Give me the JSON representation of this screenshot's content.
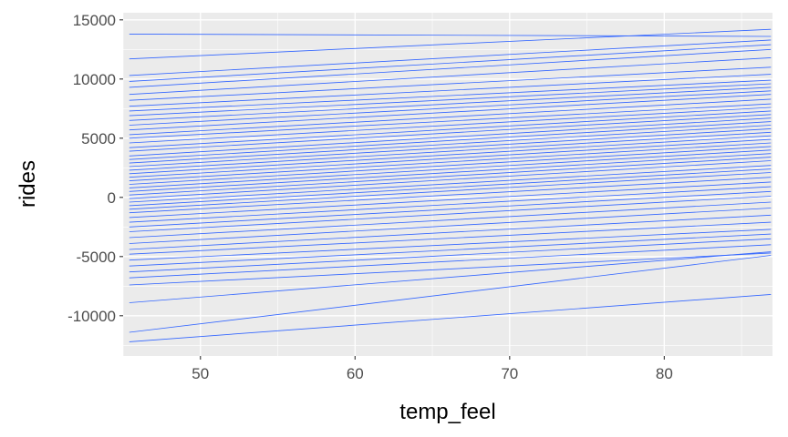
{
  "chart_data": {
    "type": "line",
    "title": "",
    "xlabel": "temp_feel",
    "ylabel": "rides",
    "xlim": [
      45.0,
      87.0
    ],
    "ylim": [
      -13400,
      15600
    ],
    "x_ticks": [
      50,
      60,
      70,
      80
    ],
    "y_ticks": [
      -10000,
      -5000,
      0,
      5000,
      10000,
      15000
    ],
    "x_tick_labels": [
      "50",
      "60",
      "70",
      "80"
    ],
    "y_tick_labels": [
      "-10000",
      "-5000",
      "0",
      "5000",
      "10000",
      "15000"
    ],
    "grid": true,
    "line_color": "#3366FF",
    "panel_background": "#EBEBEB",
    "legend": "none",
    "series": [
      {
        "x": [
          45.4,
          86.9
        ],
        "y": [
          13800,
          13600
        ]
      },
      {
        "x": [
          45.4,
          86.9
        ],
        "y": [
          11700,
          14200
        ]
      },
      {
        "x": [
          45.4,
          86.9
        ],
        "y": [
          10300,
          13300
        ]
      },
      {
        "x": [
          45.4,
          86.9
        ],
        "y": [
          9800,
          12900
        ]
      },
      {
        "x": [
          45.4,
          86.9
        ],
        "y": [
          9300,
          12500
        ]
      },
      {
        "x": [
          45.4,
          86.9
        ],
        "y": [
          8700,
          11800
        ]
      },
      {
        "x": [
          45.4,
          86.9
        ],
        "y": [
          8200,
          11000
        ]
      },
      {
        "x": [
          45.4,
          86.9
        ],
        "y": [
          7700,
          10400
        ]
      },
      {
        "x": [
          45.4,
          86.9
        ],
        "y": [
          7300,
          9900
        ]
      },
      {
        "x": [
          45.4,
          86.9
        ],
        "y": [
          6900,
          9600
        ]
      },
      {
        "x": [
          45.4,
          86.9
        ],
        "y": [
          6500,
          9300
        ]
      },
      {
        "x": [
          45.4,
          86.9
        ],
        "y": [
          6100,
          9000
        ]
      },
      {
        "x": [
          45.4,
          86.9
        ],
        "y": [
          5700,
          8700
        ]
      },
      {
        "x": [
          45.4,
          86.9
        ],
        "y": [
          5300,
          8300
        ]
      },
      {
        "x": [
          45.4,
          86.9
        ],
        "y": [
          5000,
          7900
        ]
      },
      {
        "x": [
          45.4,
          86.9
        ],
        "y": [
          4600,
          7600
        ]
      },
      {
        "x": [
          45.4,
          86.9
        ],
        "y": [
          4200,
          7300
        ]
      },
      {
        "x": [
          45.4,
          86.9
        ],
        "y": [
          3900,
          7000
        ]
      },
      {
        "x": [
          45.4,
          86.9
        ],
        "y": [
          3500,
          6700
        ]
      },
      {
        "x": [
          45.4,
          86.9
        ],
        "y": [
          3200,
          6400
        ]
      },
      {
        "x": [
          45.4,
          86.9
        ],
        "y": [
          2900,
          6100
        ]
      },
      {
        "x": [
          45.4,
          86.9
        ],
        "y": [
          2600,
          5800
        ]
      },
      {
        "x": [
          45.4,
          86.9
        ],
        "y": [
          2300,
          5500
        ]
      },
      {
        "x": [
          45.4,
          86.9
        ],
        "y": [
          2000,
          5200
        ]
      },
      {
        "x": [
          45.4,
          86.9
        ],
        "y": [
          1700,
          4900
        ]
      },
      {
        "x": [
          45.4,
          86.9
        ],
        "y": [
          1400,
          4600
        ]
      },
      {
        "x": [
          45.4,
          86.9
        ],
        "y": [
          1100,
          4300
        ]
      },
      {
        "x": [
          45.4,
          86.9
        ],
        "y": [
          800,
          4000
        ]
      },
      {
        "x": [
          45.4,
          86.9
        ],
        "y": [
          500,
          3700
        ]
      },
      {
        "x": [
          45.4,
          86.9
        ],
        "y": [
          200,
          3400
        ]
      },
      {
        "x": [
          45.4,
          86.9
        ],
        "y": [
          -100,
          3100
        ]
      },
      {
        "x": [
          45.4,
          86.9
        ],
        "y": [
          -400,
          2700
        ]
      },
      {
        "x": [
          45.4,
          86.9
        ],
        "y": [
          -700,
          2400
        ]
      },
      {
        "x": [
          45.4,
          86.9
        ],
        "y": [
          -1000,
          2100
        ]
      },
      {
        "x": [
          45.4,
          86.9
        ],
        "y": [
          -1300,
          1700
        ]
      },
      {
        "x": [
          45.4,
          86.9
        ],
        "y": [
          -1700,
          1300
        ]
      },
      {
        "x": [
          45.4,
          86.9
        ],
        "y": [
          -2100,
          900
        ]
      },
      {
        "x": [
          45.4,
          86.9
        ],
        "y": [
          -2500,
          500
        ]
      },
      {
        "x": [
          45.4,
          86.9
        ],
        "y": [
          -2900,
          100
        ]
      },
      {
        "x": [
          45.4,
          86.9
        ],
        "y": [
          -3400,
          -400
        ]
      },
      {
        "x": [
          45.4,
          86.9
        ],
        "y": [
          -3900,
          -900
        ]
      },
      {
        "x": [
          45.4,
          86.9
        ],
        "y": [
          -4400,
          -1500
        ]
      },
      {
        "x": [
          45.4,
          86.9
        ],
        "y": [
          -4800,
          -2100
        ]
      },
      {
        "x": [
          45.4,
          86.9
        ],
        "y": [
          -5300,
          -2700
        ]
      },
      {
        "x": [
          45.4,
          86.9
        ],
        "y": [
          -5800,
          -3100
        ]
      },
      {
        "x": [
          45.4,
          86.9
        ],
        "y": [
          -6300,
          -3500
        ]
      },
      {
        "x": [
          45.4,
          86.9
        ],
        "y": [
          -6800,
          -4000
        ]
      },
      {
        "x": [
          45.4,
          86.9
        ],
        "y": [
          -7400,
          -4700
        ]
      },
      {
        "x": [
          45.4,
          86.9
        ],
        "y": [
          -8900,
          -4600
        ]
      },
      {
        "x": [
          45.4,
          86.9
        ],
        "y": [
          -11400,
          -4900
        ]
      },
      {
        "x": [
          45.4,
          86.9
        ],
        "y": [
          -12200,
          -8200
        ]
      }
    ]
  }
}
